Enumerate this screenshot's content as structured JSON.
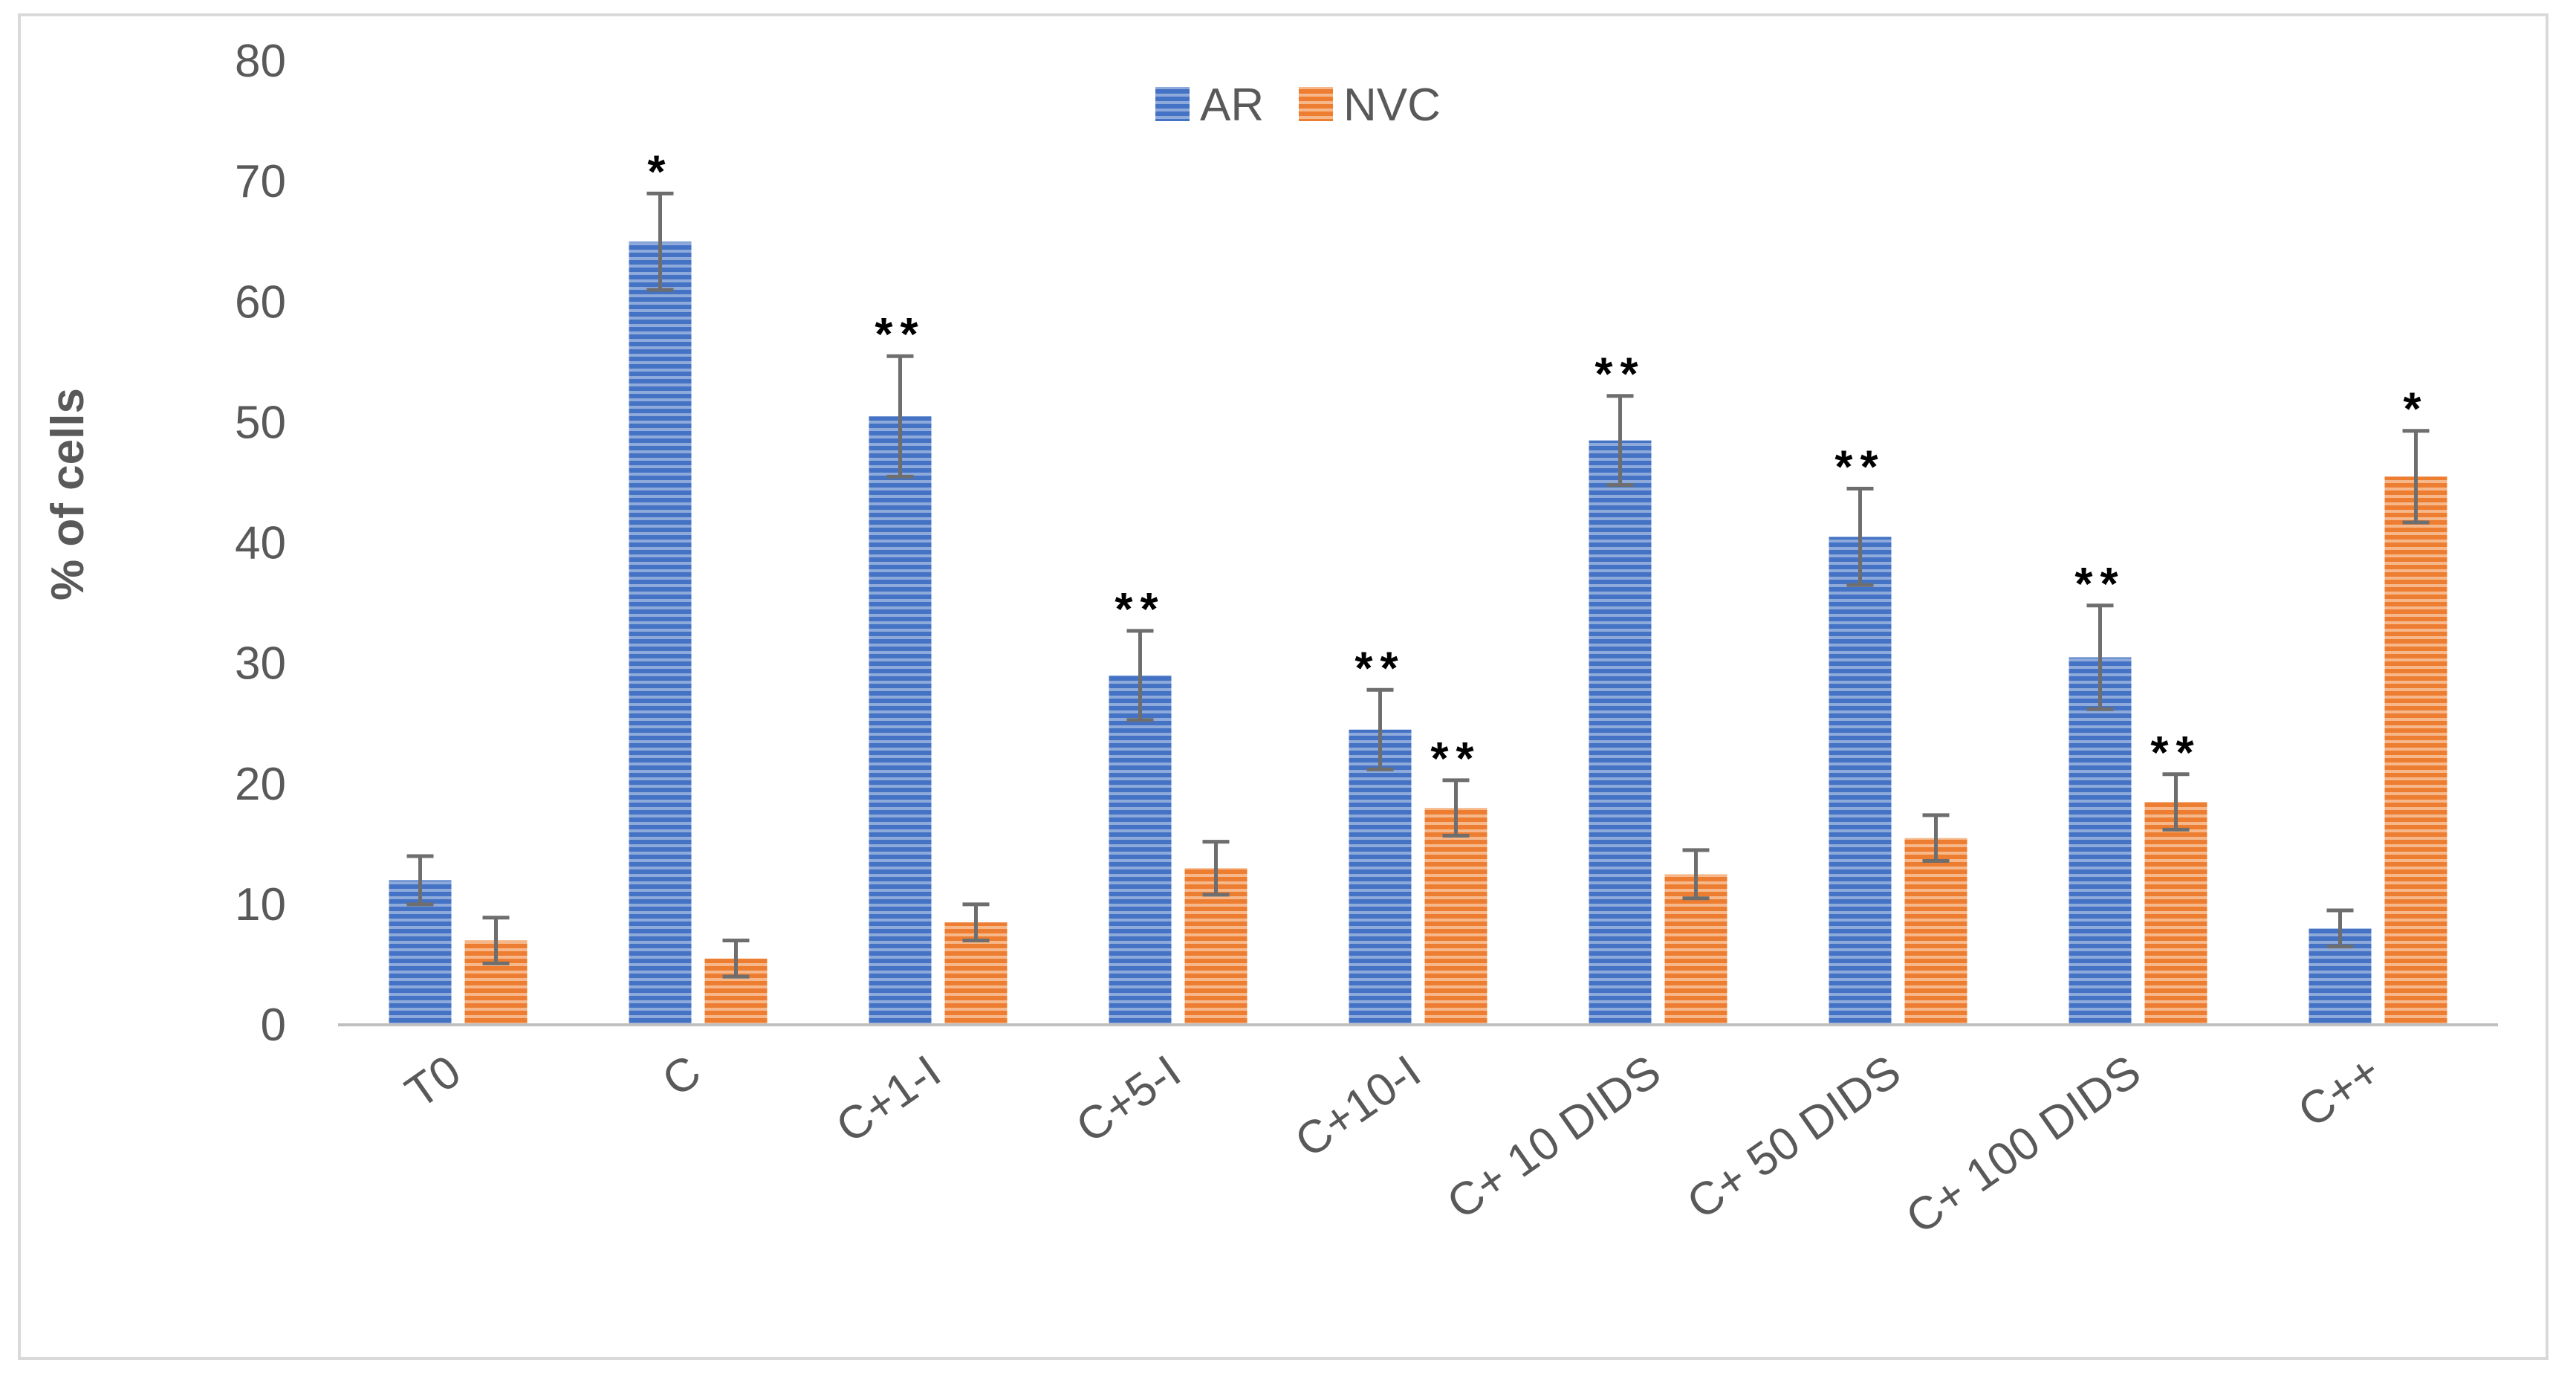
{
  "chart_data": {
    "type": "bar",
    "title": "",
    "xlabel": "",
    "ylabel": "% of cells",
    "ylim": [
      0,
      80
    ],
    "yticks": [
      "0",
      "10",
      "20",
      "30",
      "40",
      "50",
      "60",
      "70",
      "80"
    ],
    "categories": [
      "T0",
      "C",
      "C+1-I",
      "C+5-I",
      "C+10-I",
      "C+ 10 DIDS",
      "C+ 50 DIDS",
      "C+ 100 DIDS",
      "C++"
    ],
    "series": [
      {
        "name": "AR",
        "color": "#4472c4",
        "values": [
          12,
          65,
          50.5,
          29,
          24.5,
          48.5,
          40.5,
          30.5,
          8
        ],
        "errors": [
          2,
          4,
          5,
          3.7,
          3.3,
          3.7,
          4,
          4.3,
          1.5
        ],
        "significance": [
          "",
          "*",
          "**",
          "**",
          "**",
          "**",
          "**",
          "**",
          ""
        ]
      },
      {
        "name": "NVC",
        "color": "#ed7d31",
        "values": [
          7,
          5.5,
          8.5,
          13,
          18,
          12.5,
          15.5,
          18.5,
          45.5
        ],
        "errors": [
          1.9,
          1.5,
          1.5,
          2.2,
          2.3,
          2,
          1.9,
          2.3,
          3.8
        ],
        "significance": [
          "",
          "",
          "",
          "",
          "**",
          "",
          "",
          "**",
          "*"
        ]
      }
    ],
    "legend_position": "top-center"
  }
}
